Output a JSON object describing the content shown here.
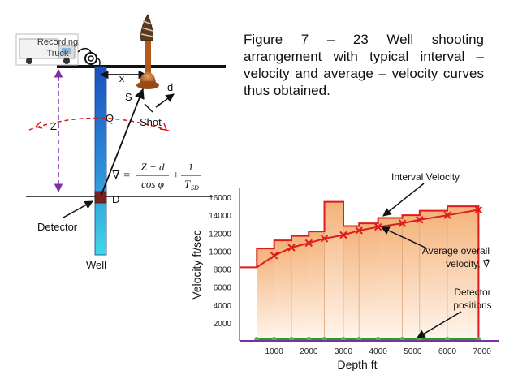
{
  "caption": "Figure 7 – 23  Well shooting arrangement with typical interval – velocity and average – velocity curves thus obtained.",
  "diagram": {
    "truck_label_line1": "Recording",
    "truck_label_line2": "Truck",
    "label_x": "x",
    "label_d": "d",
    "label_S": "S",
    "label_Q": "Q",
    "label_Z": "Z",
    "label_D": "D",
    "label_shot": "Shot",
    "label_detector": "Detector",
    "label_well": "Well",
    "formula": {
      "lhs": "∇ =",
      "num1": "Z − d",
      "den1": "cos φ",
      "plus": "+",
      "num2": "1",
      "den2_main": "T",
      "den2_sub": "SD"
    },
    "colors": {
      "well_top": "#1a4fbf",
      "well_bottom": "#40d8e6",
      "ray": "#d81818",
      "guide": "#7b2fa8",
      "detector": "#7a2222",
      "shot": "#b05a1e"
    }
  },
  "chart_data": {
    "type": "line",
    "xlabel": "Depth ft",
    "ylabel": "Velocity ft/sec",
    "xlim": [
      0,
      7500
    ],
    "ylim": [
      0,
      17000
    ],
    "x_ticks": [
      1000,
      2000,
      3000,
      4000,
      5000,
      6000,
      7000
    ],
    "y_ticks": [
      2000,
      4000,
      6000,
      8000,
      10000,
      12000,
      14000,
      16000
    ],
    "annotations": {
      "interval": "Interval Velocity",
      "average_line1": "Average overall",
      "average_line2": "velocity, ∇̄",
      "detector_line1": "Detector",
      "detector_line2": "positions"
    },
    "interval_velocity": [
      {
        "from": 500,
        "to": 1000,
        "v": 10300
      },
      {
        "from": 1000,
        "to": 1500,
        "v": 11200
      },
      {
        "from": 1500,
        "to": 2000,
        "v": 11700
      },
      {
        "from": 2000,
        "to": 2450,
        "v": 12200
      },
      {
        "from": 2450,
        "to": 3000,
        "v": 15500
      },
      {
        "from": 3000,
        "to": 3450,
        "v": 12800
      },
      {
        "from": 3450,
        "to": 4000,
        "v": 13100
      },
      {
        "from": 4000,
        "to": 4700,
        "v": 13700
      },
      {
        "from": 4700,
        "to": 5200,
        "v": 14000
      },
      {
        "from": 5200,
        "to": 6000,
        "v": 14500
      },
      {
        "from": 6000,
        "to": 6900,
        "v": 15000
      }
    ],
    "average_velocity": {
      "x": [
        0,
        500,
        1000,
        1500,
        2000,
        2450,
        3000,
        3450,
        4000,
        4700,
        5200,
        6000,
        6900
      ],
      "y": [
        8200,
        8200,
        9500,
        10400,
        10900,
        11400,
        11800,
        12300,
        12700,
        13100,
        13500,
        14000,
        14600
      ]
    },
    "detector_positions": [
      500,
      1000,
      1500,
      2000,
      2450,
      3000,
      3450,
      4000,
      4700,
      5200,
      6000,
      6900
    ],
    "colors": {
      "bars_fill_top": "#f4b27a",
      "bars_fill_bottom": "#fff6ee",
      "line": "#e01b1b",
      "axis": "#7a2fa8",
      "detector": "#39c239",
      "arrow": "#111111"
    }
  }
}
